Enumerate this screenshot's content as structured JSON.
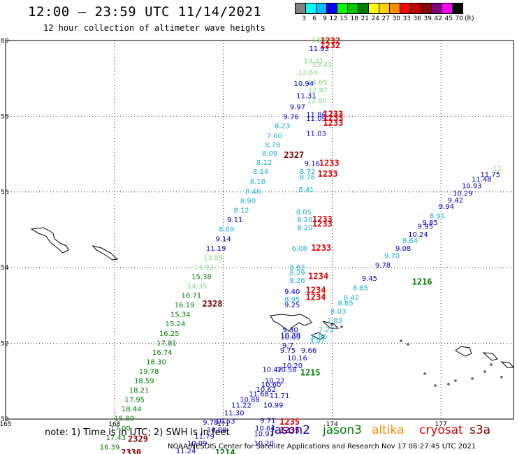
{
  "header": {
    "title": "12:00 – 23:59 UTC 11/14/2021",
    "subtitle": "12 hour collection of altimeter wave heights"
  },
  "colorbar": {
    "colors": [
      "#808080",
      "#00ffff",
      "#00bfff",
      "#0000ff",
      "#00ff00",
      "#00c800",
      "#008000",
      "#ffff00",
      "#ffd000",
      "#ff8c00",
      "#ff0000",
      "#c80000",
      "#8b0000",
      "#800080",
      "#ff00ff",
      "#000000"
    ],
    "labels": [
      "3",
      "6",
      "9",
      "12",
      "15",
      "18",
      "21",
      "24",
      "27",
      "30",
      "33",
      "36",
      "39",
      "42",
      "45",
      "70"
    ],
    "unit": "(ft)"
  },
  "map": {
    "lon_range": [
      165,
      179
    ],
    "lat_range": [
      50,
      60
    ],
    "lon_labels": [
      {
        "lon": 165,
        "text": "165"
      },
      {
        "lon": 168,
        "text": "168"
      },
      {
        "lon": 171,
        "text": "171"
      },
      {
        "lon": 174,
        "text": "174"
      },
      {
        "lon": 177,
        "text": "177"
      }
    ],
    "lat_labels": [
      {
        "lat": 60,
        "text": "60"
      },
      {
        "lat": 58,
        "text": "58"
      },
      {
        "lat": 56,
        "text": "56"
      },
      {
        "lat": 54,
        "text": "54"
      },
      {
        "lat": 52,
        "text": "52"
      },
      {
        "lat": 50,
        "text": "50"
      }
    ],
    "sat_colors": {
      "jason2": "#0000cc",
      "jason3": "#008000",
      "altika": "#ff8c00",
      "cryosat": "#e00000",
      "s3a": "#800000"
    }
  },
  "observations": [
    {
      "lon": 173.71,
      "lat": 59.95,
      "v": "13.82",
      "c": "#7ee07e"
    },
    {
      "lon": 173.64,
      "lat": 59.72,
      "v": "11.93",
      "c": "#0000cc"
    },
    {
      "lon": 173.49,
      "lat": 59.4,
      "v": "13.31",
      "c": "#7ee07e"
    },
    {
      "lon": 173.73,
      "lat": 59.3,
      "v": "13.42",
      "c": "#7ee07e"
    },
    {
      "lon": 173.33,
      "lat": 59.1,
      "v": "12.64",
      "c": "#7ee07e"
    },
    {
      "lon": 173.6,
      "lat": 58.83,
      "v": "14.05",
      "c": "#7ee07e"
    },
    {
      "lon": 173.22,
      "lat": 58.8,
      "v": "10.94",
      "c": "#0000cc"
    },
    {
      "lon": 173.61,
      "lat": 58.63,
      "v": "12.97",
      "c": "#7ee07e"
    },
    {
      "lon": 173.29,
      "lat": 58.48,
      "v": "11.31",
      "c": "#0000cc"
    },
    {
      "lon": 173.58,
      "lat": 58.35,
      "v": "12.80",
      "c": "#7ee07e"
    },
    {
      "lon": 173.05,
      "lat": 58.18,
      "v": "9.97",
      "c": "#0000cc"
    },
    {
      "lon": 173.56,
      "lat": 57.98,
      "v": "11.86",
      "c": "#0000cc"
    },
    {
      "lon": 172.87,
      "lat": 57.92,
      "v": "9.76",
      "c": "#0000cc"
    },
    {
      "lon": 173.56,
      "lat": 57.88,
      "v": "11.09",
      "c": "#0000cc"
    },
    {
      "lon": 172.63,
      "lat": 57.68,
      "v": "8.23",
      "c": "#1ab0d8"
    },
    {
      "lon": 173.56,
      "lat": 57.48,
      "v": "11.03",
      "c": "#0000cc"
    },
    {
      "lon": 172.41,
      "lat": 57.42,
      "v": "7.60",
      "c": "#1ab0d8"
    },
    {
      "lon": 172.36,
      "lat": 57.18,
      "v": "8.78",
      "c": "#1ab0d8"
    },
    {
      "lon": 172.28,
      "lat": 56.96,
      "v": "8.09",
      "c": "#1ab0d8"
    },
    {
      "lon": 172.13,
      "lat": 56.72,
      "v": "8.12",
      "c": "#1ab0d8"
    },
    {
      "lon": 173.45,
      "lat": 56.69,
      "v": "9.16",
      "c": "#0000cc"
    },
    {
      "lon": 172.03,
      "lat": 56.48,
      "v": "8.14",
      "c": "#1ab0d8"
    },
    {
      "lon": 173.32,
      "lat": 56.48,
      "v": "8.72",
      "c": "#1ab0d8"
    },
    {
      "lon": 173.32,
      "lat": 56.33,
      "v": "8.76",
      "c": "#1ab0d8"
    },
    {
      "lon": 171.95,
      "lat": 56.22,
      "v": "8.18",
      "c": "#1ab0d8"
    },
    {
      "lon": 173.29,
      "lat": 56.0,
      "v": "8.41",
      "c": "#1ab0d8"
    },
    {
      "lon": 171.82,
      "lat": 55.95,
      "v": "8.46",
      "c": "#1ab0d8"
    },
    {
      "lon": 171.68,
      "lat": 55.7,
      "v": "8.90",
      "c": "#1ab0d8"
    },
    {
      "lon": 171.5,
      "lat": 55.45,
      "v": "8.12",
      "c": "#1ab0d8"
    },
    {
      "lon": 173.22,
      "lat": 55.41,
      "v": "8.05",
      "c": "#1ab0d8"
    },
    {
      "lon": 171.32,
      "lat": 55.2,
      "v": "9.11",
      "c": "#0000cc"
    },
    {
      "lon": 173.25,
      "lat": 55.2,
      "v": "8.20",
      "c": "#1ab0d8"
    },
    {
      "lon": 173.25,
      "lat": 55.0,
      "v": "8.20",
      "c": "#1ab0d8"
    },
    {
      "lon": 171.09,
      "lat": 54.95,
      "v": "8.69",
      "c": "#1ab0d8"
    },
    {
      "lon": 171.0,
      "lat": 54.7,
      "v": "9.14",
      "c": "#0000cc"
    },
    {
      "lon": 170.8,
      "lat": 54.45,
      "v": "11.19",
      "c": "#0000cc"
    },
    {
      "lon": 173.1,
      "lat": 54.45,
      "v": "6.08",
      "c": "#1ab0d8"
    },
    {
      "lon": 170.72,
      "lat": 54.2,
      "v": "13.85",
      "c": "#7ee07e"
    },
    {
      "lon": 170.46,
      "lat": 53.95,
      "v": "14.92",
      "c": "#7ee07e"
    },
    {
      "lon": 173.04,
      "lat": 53.95,
      "v": "8.62",
      "c": "#1ab0d8"
    },
    {
      "lon": 173.04,
      "lat": 53.8,
      "v": "8.29",
      "c": "#1ab0d8"
    },
    {
      "lon": 170.4,
      "lat": 53.7,
      "v": "15.38",
      "c": "#008000"
    },
    {
      "lon": 173.04,
      "lat": 53.6,
      "v": "8.26",
      "c": "#1ab0d8"
    },
    {
      "lon": 170.28,
      "lat": 53.45,
      "v": "14.35",
      "c": "#7ee07e"
    },
    {
      "lon": 170.12,
      "lat": 53.2,
      "v": "16.71",
      "c": "#008000"
    },
    {
      "lon": 172.9,
      "lat": 53.3,
      "v": "9.40",
      "c": "#0000cc"
    },
    {
      "lon": 172.9,
      "lat": 53.1,
      "v": "8.95",
      "c": "#1ab0d8"
    },
    {
      "lon": 169.93,
      "lat": 52.95,
      "v": "16.19",
      "c": "#008000"
    },
    {
      "lon": 172.9,
      "lat": 52.95,
      "v": "9.25",
      "c": "#0000cc"
    },
    {
      "lon": 169.82,
      "lat": 52.7,
      "v": "15.34",
      "c": "#008000"
    },
    {
      "lon": 169.68,
      "lat": 52.45,
      "v": "15.24",
      "c": "#008000"
    },
    {
      "lon": 169.51,
      "lat": 52.2,
      "v": "16.25",
      "c": "#008000"
    },
    {
      "lon": 172.85,
      "lat": 52.3,
      "v": "9.30",
      "c": "#0000cc"
    },
    {
      "lon": 172.85,
      "lat": 52.15,
      "v": "10.38",
      "c": "#0000cc"
    },
    {
      "lon": 172.85,
      "lat": 52.1,
      "v": "10.09",
      "c": "#0000cc"
    },
    {
      "lon": 169.44,
      "lat": 51.95,
      "v": "17.81",
      "c": "#008000"
    },
    {
      "lon": 173.59,
      "lat": 52.0,
      "v": "3.07",
      "c": "#1ab0d8"
    },
    {
      "lon": 172.78,
      "lat": 51.88,
      "v": "9.7",
      "c": "#0000cc"
    },
    {
      "lon": 169.32,
      "lat": 51.7,
      "v": "16.74",
      "c": "#008000"
    },
    {
      "lon": 173.36,
      "lat": 51.75,
      "v": "9.66",
      "c": "#0000cc"
    },
    {
      "lon": 172.78,
      "lat": 51.75,
      "v": "9.75",
      "c": "#0000cc"
    },
    {
      "lon": 169.15,
      "lat": 51.45,
      "v": "18.30",
      "c": "#008000"
    },
    {
      "lon": 173.04,
      "lat": 51.55,
      "v": "10.16",
      "c": "#0000cc"
    },
    {
      "lon": 168.95,
      "lat": 51.2,
      "v": "19.78",
      "c": "#008000"
    },
    {
      "lon": 172.91,
      "lat": 51.35,
      "v": "10.20",
      "c": "#0000cc"
    },
    {
      "lon": 172.35,
      "lat": 51.25,
      "v": "10.47",
      "c": "#0000cc"
    },
    {
      "lon": 172.75,
      "lat": 51.25,
      "v": "10.58",
      "c": "#0000cc"
    },
    {
      "lon": 168.82,
      "lat": 50.95,
      "v": "18.59",
      "c": "#008000"
    },
    {
      "lon": 172.42,
      "lat": 50.95,
      "v": "10.22",
      "c": "#0000cc"
    },
    {
      "lon": 172.32,
      "lat": 50.85,
      "v": "10.60",
      "c": "#0000cc"
    },
    {
      "lon": 168.68,
      "lat": 50.7,
      "v": "18.21",
      "c": "#008000"
    },
    {
      "lon": 172.18,
      "lat": 50.72,
      "v": "10.62",
      "c": "#0000cc"
    },
    {
      "lon": 168.56,
      "lat": 50.45,
      "v": "17.95",
      "c": "#008000"
    },
    {
      "lon": 171.98,
      "lat": 50.6,
      "v": "11.68",
      "c": "#0000cc"
    },
    {
      "lon": 172.55,
      "lat": 50.55,
      "v": "11.71",
      "c": "#0000cc"
    },
    {
      "lon": 171.73,
      "lat": 50.45,
      "v": "10.88",
      "c": "#0000cc"
    },
    {
      "lon": 168.47,
      "lat": 50.2,
      "v": "18.44",
      "c": "#008000"
    },
    {
      "lon": 171.5,
      "lat": 50.3,
      "v": "11.22",
      "c": "#0000cc"
    },
    {
      "lon": 172.38,
      "lat": 50.3,
      "v": "10.99",
      "c": "#0000cc"
    },
    {
      "lon": 168.27,
      "lat": 49.95,
      "v": "15.89",
      "c": "#008000"
    },
    {
      "lon": 171.3,
      "lat": 50.1,
      "v": "11.30",
      "c": "#0000cc"
    },
    {
      "lon": 168.17,
      "lat": 49.7,
      "v": "17.00",
      "c": "#008000"
    },
    {
      "lon": 170.65,
      "lat": 49.85,
      "v": "9.78",
      "c": "#0000cc"
    },
    {
      "lon": 171.05,
      "lat": 49.88,
      "v": "10.53",
      "c": "#0000cc"
    },
    {
      "lon": 172.23,
      "lat": 49.9,
      "v": "9.71",
      "c": "#0000cc"
    },
    {
      "lon": 168.04,
      "lat": 49.45,
      "v": "17.43",
      "c": "#008000"
    },
    {
      "lon": 170.82,
      "lat": 49.65,
      "v": "10.88",
      "c": "#0000cc"
    },
    {
      "lon": 172.15,
      "lat": 49.7,
      "v": "10.64",
      "c": "#0000cc"
    },
    {
      "lon": 167.87,
      "lat": 49.2,
      "v": "16.39",
      "c": "#008000"
    },
    {
      "lon": 172.12,
      "lat": 49.55,
      "v": "10.97",
      "c": "#0000cc"
    },
    {
      "lon": 170.48,
      "lat": 49.48,
      "v": "11.79",
      "c": "#0000cc"
    },
    {
      "lon": 167.68,
      "lat": 48.95,
      "v": "15.66",
      "c": "#008000"
    },
    {
      "lon": 170.28,
      "lat": 49.3,
      "v": "10.09",
      "c": "#0000cc"
    },
    {
      "lon": 172.12,
      "lat": 49.3,
      "v": "10.20",
      "c": "#0000cc"
    },
    {
      "lon": 167.59,
      "lat": 48.75,
      "v": "14.58",
      "c": "#7ee07e"
    },
    {
      "lon": 169.97,
      "lat": 49.1,
      "v": "11.24",
      "c": "#0000cc"
    },
    {
      "lon": 173.65,
      "lat": 52.12,
      "v": "6.86",
      "c": "#1ab0d8"
    },
    {
      "lon": 173.84,
      "lat": 52.3,
      "v": "7.22",
      "c": "#1ab0d8"
    },
    {
      "lon": 174.07,
      "lat": 52.55,
      "v": "7.83",
      "c": "#1ab0d8"
    },
    {
      "lon": 174.17,
      "lat": 52.79,
      "v": "8.03",
      "c": "#1ab0d8"
    },
    {
      "lon": 174.37,
      "lat": 53.0,
      "v": "8.85",
      "c": "#1ab0d8"
    },
    {
      "lon": 174.53,
      "lat": 53.15,
      "v": "8.42",
      "c": "#1ab0d8"
    },
    {
      "lon": 174.78,
      "lat": 53.4,
      "v": "8.85",
      "c": "#1ab0d8"
    },
    {
      "lon": 175.03,
      "lat": 53.65,
      "v": "9.45",
      "c": "#0000cc"
    },
    {
      "lon": 175.4,
      "lat": 54.0,
      "v": "9.78",
      "c": "#0000cc"
    },
    {
      "lon": 175.65,
      "lat": 54.25,
      "v": "9.70",
      "c": "#1ab0d8"
    },
    {
      "lon": 175.96,
      "lat": 54.45,
      "v": "9.08",
      "c": "#0000cc"
    },
    {
      "lon": 176.15,
      "lat": 54.65,
      "v": "8.64",
      "c": "#1ab0d8"
    },
    {
      "lon": 176.37,
      "lat": 54.82,
      "v": "10.24",
      "c": "#0000cc"
    },
    {
      "lon": 176.57,
      "lat": 55.03,
      "v": "9.95",
      "c": "#0000cc"
    },
    {
      "lon": 176.7,
      "lat": 55.13,
      "v": "9.85",
      "c": "#0000cc"
    },
    {
      "lon": 176.9,
      "lat": 55.3,
      "v": "8.91",
      "c": "#1ab0d8"
    },
    {
      "lon": 177.15,
      "lat": 55.55,
      "v": "9.94",
      "c": "#0000cc"
    },
    {
      "lon": 177.4,
      "lat": 55.72,
      "v": "9.42",
      "c": "#0000cc"
    },
    {
      "lon": 177.6,
      "lat": 55.9,
      "v": "10.29",
      "c": "#0000cc"
    },
    {
      "lon": 177.85,
      "lat": 56.1,
      "v": "10.93",
      "c": "#0000cc"
    },
    {
      "lon": 178.12,
      "lat": 56.27,
      "v": "11.48",
      "c": "#0000cc"
    },
    {
      "lon": 178.36,
      "lat": 56.4,
      "v": "11.75",
      "c": "#0000cc"
    },
    {
      "lon": 178.55,
      "lat": 56.55,
      "v": "12",
      "c": "#7ee07e"
    }
  ],
  "time_labels": [
    {
      "lon": 173.95,
      "lat": 59.92,
      "t": "1232",
      "c": "#e00000"
    },
    {
      "lon": 173.95,
      "lat": 59.8,
      "t": "1232",
      "c": "#e00000"
    },
    {
      "lon": 174.03,
      "lat": 57.98,
      "t": "1233",
      "c": "#e00000"
    },
    {
      "lon": 174.03,
      "lat": 57.88,
      "t": "1233",
      "c": "#e00000"
    },
    {
      "lon": 174.03,
      "lat": 57.75,
      "t": "1233",
      "c": "#e00000"
    },
    {
      "lon": 172.95,
      "lat": 56.9,
      "t": "2327",
      "c": "#800000"
    },
    {
      "lon": 173.92,
      "lat": 56.69,
      "t": "1233",
      "c": "#e00000"
    },
    {
      "lon": 173.88,
      "lat": 56.4,
      "t": "1233",
      "c": "#e00000"
    },
    {
      "lon": 173.73,
      "lat": 55.2,
      "t": "1233",
      "c": "#e00000"
    },
    {
      "lon": 173.73,
      "lat": 55.08,
      "t": "1233",
      "c": "#e00000"
    },
    {
      "lon": 173.7,
      "lat": 54.45,
      "t": "1233",
      "c": "#e00000"
    },
    {
      "lon": 173.62,
      "lat": 53.7,
      "t": "1234",
      "c": "#e00000"
    },
    {
      "lon": 173.55,
      "lat": 53.33,
      "t": "1234",
      "c": "#e00000"
    },
    {
      "lon": 173.55,
      "lat": 53.15,
      "t": "1234",
      "c": "#e00000"
    },
    {
      "lon": 170.7,
      "lat": 52.97,
      "t": "2328",
      "c": "#800000"
    },
    {
      "lon": 176.48,
      "lat": 53.55,
      "t": "1216",
      "c": "#008000"
    },
    {
      "lon": 173.4,
      "lat": 51.15,
      "t": "1215",
      "c": "#008000"
    },
    {
      "lon": 172.83,
      "lat": 49.85,
      "t": "1235",
      "c": "#e00000"
    },
    {
      "lon": 172.83,
      "lat": 49.63,
      "t": "1235",
      "c": "#e00000"
    },
    {
      "lon": 168.65,
      "lat": 49.4,
      "t": "2329",
      "c": "#800000"
    },
    {
      "lon": 168.46,
      "lat": 49.04,
      "t": "2330",
      "c": "#800000"
    },
    {
      "lon": 171.05,
      "lat": 49.04,
      "t": "1214",
      "c": "#008000"
    }
  ],
  "footer": {
    "note": "note: 1) Time is in UTC; 2) SWH is in feet",
    "sats": [
      {
        "name": "jason2",
        "color": "#0000cc"
      },
      {
        "name": "jason3",
        "color": "#008000"
      },
      {
        "name": "altika",
        "color": "#ff8c00"
      },
      {
        "name": "cryosat",
        "color": "#e00000"
      },
      {
        "name": "s3a",
        "color": "#800000"
      }
    ],
    "credit": "NOAA/NESDIS Center for Satellite Applications and Research   Nov 17 08:27:45 UTC 2021"
  }
}
